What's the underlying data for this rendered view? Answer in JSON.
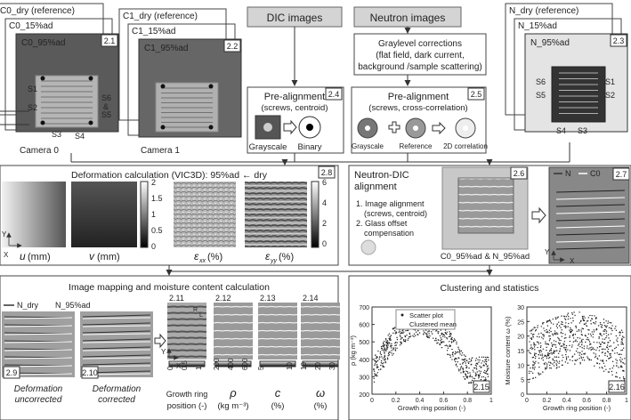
{
  "camera0": {
    "dry": "C0_dry (reference)",
    "ad15": "C0_15%ad",
    "ad95": "C0_95%ad",
    "tag": "2.1",
    "label": "Camera 0",
    "screws": [
      "S1",
      "S2",
      "S3",
      "S4",
      "S6",
      "&",
      "S5"
    ]
  },
  "camera1": {
    "dry": "C1_dry (reference)",
    "ad15": "C1_15%ad",
    "ad95": "C1_95%ad",
    "tag": "2.2",
    "label": "Camera 1"
  },
  "neutron_stack": {
    "dry": "N_dry (reference)",
    "ad15": "N_15%ad",
    "ad95": "N_95%ad",
    "tag": "2.3",
    "screws": [
      "S6",
      "S1",
      "S5",
      "S2",
      "S4",
      "S3"
    ]
  },
  "dic_header": "DIC images",
  "neutron_header": "Neutron images",
  "graylevel": [
    "Graylevel corrections",
    "(flat field, dark current,",
    "background /sample scattering)"
  ],
  "prealign_dic": {
    "title": "Pre-alignment",
    "subtitle": "(screws, centroid)",
    "tag": "2.4",
    "steps": [
      "Grayscale",
      "Binary"
    ]
  },
  "prealign_neutron": {
    "title": "Pre-alignment",
    "subtitle": "(screws, cross-correlation)",
    "tag": "2.5",
    "steps": [
      "Grayscale",
      "Reference",
      "2D correlation"
    ]
  },
  "deformation": {
    "title": "Deformation calculation (VIC3D): 95%ad ← dry",
    "tag": "2.8",
    "fields": [
      {
        "symbol": "u",
        "unit": "(mm)"
      },
      {
        "symbol": "v",
        "unit": "(mm)"
      },
      {
        "symbol": "ε",
        "sub": "xx",
        "unit": "(%)"
      },
      {
        "symbol": "ε",
        "sub": "yy",
        "unit": "(%)"
      }
    ],
    "disp_scale": [
      2,
      1.5,
      1,
      0.5,
      0
    ],
    "strain_scale": [
      6,
      4,
      2,
      0
    ],
    "axes": [
      "X",
      "Y"
    ]
  },
  "alignment": {
    "title": [
      "Neutron-DIC",
      "alignment"
    ],
    "steps": [
      "1. Image alignment",
      "(screws, centroid)",
      "2. Glass offset",
      "compensation"
    ],
    "image_tag": "2.6",
    "image_caption": "C0_95%ad & N_95%ad",
    "overlay_tag": "2.7",
    "legend": [
      "N",
      "C0"
    ],
    "axes": [
      "X",
      "Y"
    ]
  },
  "mapping": {
    "title": "Image mapping and moisture content calculation",
    "legend": [
      "N_dry",
      "N_95%ad"
    ],
    "panels": [
      {
        "tag": "2.9",
        "caption": [
          "Deformation",
          "uncorrected"
        ]
      },
      {
        "tag": "2.10",
        "caption": [
          "Deformation",
          "corrected"
        ]
      }
    ],
    "maps": [
      {
        "tag": "2.11",
        "scale": [
          0,
          0.5,
          1
        ],
        "label": [
          "Growth ring",
          "position (-)"
        ]
      },
      {
        "tag": "2.12",
        "scale": [
          200,
          400,
          600
        ],
        "label": [
          "ρ",
          "(kg m⁻³)"
        ]
      },
      {
        "tag": "2.13",
        "scale": [
          5,
          10
        ],
        "label": [
          "c",
          "(%)"
        ]
      },
      {
        "tag": "2.14",
        "scale": [
          10,
          20,
          30
        ],
        "label": [
          "ω",
          "(%)"
        ]
      }
    ],
    "axes": [
      "X",
      "Y"
    ],
    "map_axes": [
      "R",
      "L"
    ]
  },
  "clustering": {
    "title": "Clustering and statistics",
    "plots": [
      {
        "tag": "2.15",
        "ylabel": "ρ (kg m⁻³)",
        "xlabel": "Growth ring position (-)",
        "yticks": [
          200,
          300,
          400,
          500,
          600,
          700
        ],
        "xticks": [
          0,
          0.2,
          0.4,
          0.6,
          0.8,
          1
        ],
        "legend": [
          "Scatter plot",
          "Clustered mean"
        ]
      },
      {
        "tag": "2.16",
        "ylabel": "Moisture content ω (%)",
        "xlabel": "Growth ring position (-)",
        "yticks": [
          0,
          5,
          10,
          15,
          20,
          25,
          30
        ],
        "xticks": [
          0,
          0.2,
          0.4,
          0.6,
          0.8,
          1
        ]
      }
    ]
  }
}
